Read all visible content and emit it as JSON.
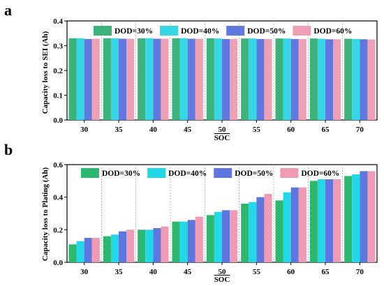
{
  "chart_data": [
    {
      "type": "bar",
      "panel_label": "a",
      "categories": [
        "30",
        "35",
        "40",
        "45",
        "50",
        "55",
        "60",
        "65",
        "70"
      ],
      "series": [
        {
          "name": "DOD=30%",
          "color": "#3cb37a",
          "values": [
            0.33,
            0.33,
            0.33,
            0.33,
            0.33,
            0.329,
            0.329,
            0.329,
            0.328
          ]
        },
        {
          "name": "DOD=40%",
          "color": "#35d6e6",
          "values": [
            0.33,
            0.33,
            0.33,
            0.33,
            0.329,
            0.329,
            0.329,
            0.328,
            0.327
          ]
        },
        {
          "name": "DOD=50%",
          "color": "#6078e0",
          "values": [
            0.327,
            0.328,
            0.328,
            0.328,
            0.327,
            0.327,
            0.327,
            0.326,
            0.326
          ]
        },
        {
          "name": "DOD=60%",
          "color": "#f0a0b4",
          "values": [
            0.328,
            0.328,
            0.328,
            0.328,
            0.327,
            0.327,
            0.327,
            0.326,
            0.325
          ]
        }
      ],
      "xlabel": "SOC",
      "ylabel": "Capacity loss to SEI (Ah)",
      "ylim": [
        0,
        0.4
      ],
      "yticks": [
        "0.0",
        "0.1",
        "0.2",
        "0.3",
        "0.4"
      ],
      "grid": "vertical dashed separators",
      "legend": "top"
    },
    {
      "type": "bar",
      "panel_label": "b",
      "categories": [
        "30",
        "35",
        "40",
        "45",
        "50",
        "55",
        "60",
        "65",
        "70"
      ],
      "series": [
        {
          "name": "DOD=30%",
          "color": "#2db86f",
          "values": [
            0.11,
            0.16,
            0.2,
            0.25,
            0.29,
            0.36,
            0.38,
            0.5,
            0.53
          ]
        },
        {
          "name": "DOD=40%",
          "color": "#22d8e8",
          "values": [
            0.13,
            0.17,
            0.2,
            0.25,
            0.31,
            0.37,
            0.43,
            0.51,
            0.54
          ]
        },
        {
          "name": "DOD=50%",
          "color": "#5e76e0",
          "values": [
            0.15,
            0.19,
            0.21,
            0.26,
            0.32,
            0.4,
            0.46,
            0.51,
            0.56
          ]
        },
        {
          "name": "DOD=60%",
          "color": "#f09ab4",
          "values": [
            0.15,
            0.2,
            0.22,
            0.28,
            0.32,
            0.42,
            0.46,
            0.51,
            0.56
          ]
        }
      ],
      "xlabel": "SOC",
      "ylabel": "Capacity loss to Plating (Ah)",
      "ylim": [
        0,
        0.6
      ],
      "yticks": [
        "0.0",
        "0.2",
        "0.4",
        "0.6"
      ],
      "grid": "vertical dashed separators",
      "legend": "top"
    }
  ]
}
